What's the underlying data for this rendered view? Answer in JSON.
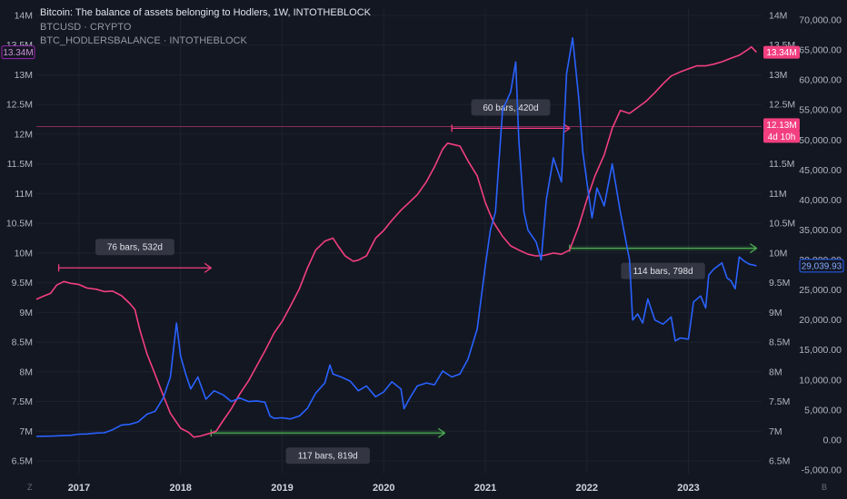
{
  "legend": {
    "title": "Bitcoin: The balance of assets belonging to Hodlers, 1W, INTOTHEBLOCK",
    "series1": "BTCUSD · CRYPTO",
    "series2": "BTC_HODLERSBALANCE · INTOTHEBLOCK"
  },
  "colors": {
    "background": "#131722",
    "price": "#2962ff",
    "hodlers": "#f23f7f",
    "green_marker": "#4caf50",
    "grid": "#1e222d"
  },
  "badges": {
    "hodlers_left": "13.34M",
    "hodlers_right": "13.34M",
    "crosshair_value": "12.13M",
    "crosshair_time": "4d 10h",
    "price_last": "29,039.93"
  },
  "corner_left": "Z",
  "corner_right": "B",
  "chart_data": {
    "type": "line",
    "x_range": [
      2016.58,
      2023.72
    ],
    "x_ticks": [
      {
        "x": 2017,
        "label": "2017"
      },
      {
        "x": 2018,
        "label": "2018"
      },
      {
        "x": 2019,
        "label": "2019"
      },
      {
        "x": 2020,
        "label": "2020"
      },
      {
        "x": 2021,
        "label": "2021"
      },
      {
        "x": 2022,
        "label": "2022"
      },
      {
        "x": 2023,
        "label": "2023"
      }
    ],
    "hodlers_axis": {
      "range": [
        6.5,
        14
      ],
      "ticks": [
        "6.5M",
        "7M",
        "7.5M",
        "8M",
        "8.5M",
        "9M",
        "9.5M",
        "10M",
        "10.5M",
        "11M",
        "11.5M",
        "12M",
        "12.5M",
        "13M",
        "13.5M",
        "14M"
      ],
      "tick_values": [
        6.5,
        7,
        7.5,
        8,
        8.5,
        9,
        9.5,
        10,
        10.5,
        11,
        11.5,
        12,
        12.5,
        13,
        13.5,
        14
      ]
    },
    "price_axis": {
      "range": [
        -5000,
        70000
      ],
      "ticks": [
        "-5,000.00",
        "0.00",
        "5,000.00",
        "10,000.00",
        "15,000.00",
        "20,000.00",
        "25,000.00",
        "30,000.00",
        "35,000.00",
        "40,000.00",
        "45,000.00",
        "50,000.00",
        "55,000.00",
        "60,000.00",
        "65,000.00",
        "70,000.00"
      ],
      "tick_values": [
        -5000,
        0,
        5000,
        10000,
        15000,
        20000,
        25000,
        30000,
        35000,
        40000,
        45000,
        50000,
        55000,
        60000,
        65000,
        70000
      ]
    },
    "series": [
      {
        "name": "BTC_HODLERSBALANCE",
        "axis": "hodlers",
        "points": [
          [
            2016.58,
            9.22
          ],
          [
            2016.66,
            9.28
          ],
          [
            2016.72,
            9.32
          ],
          [
            2016.78,
            9.46
          ],
          [
            2016.85,
            9.52
          ],
          [
            2016.92,
            9.49
          ],
          [
            2017.0,
            9.47
          ],
          [
            2017.08,
            9.41
          ],
          [
            2017.17,
            9.39
          ],
          [
            2017.25,
            9.35
          ],
          [
            2017.33,
            9.36
          ],
          [
            2017.42,
            9.28
          ],
          [
            2017.5,
            9.15
          ],
          [
            2017.55,
            9.05
          ],
          [
            2017.6,
            8.7
          ],
          [
            2017.67,
            8.3
          ],
          [
            2017.75,
            7.95
          ],
          [
            2017.83,
            7.6
          ],
          [
            2017.9,
            7.3
          ],
          [
            2018.0,
            7.05
          ],
          [
            2018.08,
            6.98
          ],
          [
            2018.13,
            6.9
          ],
          [
            2018.2,
            6.92
          ],
          [
            2018.3,
            6.97
          ],
          [
            2018.35,
            7.0
          ],
          [
            2018.42,
            7.18
          ],
          [
            2018.5,
            7.38
          ],
          [
            2018.58,
            7.62
          ],
          [
            2018.67,
            7.85
          ],
          [
            2018.75,
            8.1
          ],
          [
            2018.83,
            8.35
          ],
          [
            2018.92,
            8.65
          ],
          [
            2019.0,
            8.85
          ],
          [
            2019.08,
            9.1
          ],
          [
            2019.17,
            9.4
          ],
          [
            2019.25,
            9.75
          ],
          [
            2019.33,
            10.05
          ],
          [
            2019.42,
            10.2
          ],
          [
            2019.5,
            10.25
          ],
          [
            2019.55,
            10.12
          ],
          [
            2019.62,
            9.95
          ],
          [
            2019.7,
            9.86
          ],
          [
            2019.75,
            9.88
          ],
          [
            2019.83,
            9.95
          ],
          [
            2019.92,
            10.25
          ],
          [
            2020.0,
            10.38
          ],
          [
            2020.08,
            10.55
          ],
          [
            2020.17,
            10.72
          ],
          [
            2020.25,
            10.85
          ],
          [
            2020.33,
            10.98
          ],
          [
            2020.42,
            11.2
          ],
          [
            2020.5,
            11.45
          ],
          [
            2020.58,
            11.75
          ],
          [
            2020.63,
            11.85
          ],
          [
            2020.7,
            11.82
          ],
          [
            2020.75,
            11.8
          ],
          [
            2020.83,
            11.55
          ],
          [
            2020.92,
            11.3
          ],
          [
            2021.0,
            10.85
          ],
          [
            2021.08,
            10.52
          ],
          [
            2021.17,
            10.28
          ],
          [
            2021.25,
            10.12
          ],
          [
            2021.33,
            10.05
          ],
          [
            2021.42,
            9.98
          ],
          [
            2021.5,
            9.95
          ],
          [
            2021.58,
            9.96
          ],
          [
            2021.67,
            10.0
          ],
          [
            2021.75,
            9.98
          ],
          [
            2021.83,
            10.05
          ],
          [
            2021.92,
            10.45
          ],
          [
            2022.0,
            10.9
          ],
          [
            2022.08,
            11.3
          ],
          [
            2022.17,
            11.65
          ],
          [
            2022.25,
            12.1
          ],
          [
            2022.33,
            12.4
          ],
          [
            2022.42,
            12.35
          ],
          [
            2022.5,
            12.45
          ],
          [
            2022.58,
            12.55
          ],
          [
            2022.67,
            12.7
          ],
          [
            2022.75,
            12.85
          ],
          [
            2022.83,
            12.98
          ],
          [
            2022.92,
            13.05
          ],
          [
            2023.0,
            13.1
          ],
          [
            2023.08,
            13.15
          ],
          [
            2023.17,
            13.15
          ],
          [
            2023.25,
            13.18
          ],
          [
            2023.33,
            13.22
          ],
          [
            2023.42,
            13.28
          ],
          [
            2023.5,
            13.33
          ],
          [
            2023.58,
            13.42
          ],
          [
            2023.62,
            13.47
          ],
          [
            2023.67,
            13.38
          ]
        ]
      },
      {
        "name": "BTCUSD",
        "axis": "price",
        "points": [
          [
            2016.58,
            600
          ],
          [
            2016.66,
            620
          ],
          [
            2016.75,
            650
          ],
          [
            2016.83,
            720
          ],
          [
            2016.92,
            780
          ],
          [
            2017.0,
            980
          ],
          [
            2017.08,
            1000
          ],
          [
            2017.17,
            1150
          ],
          [
            2017.25,
            1200
          ],
          [
            2017.33,
            1700
          ],
          [
            2017.42,
            2500
          ],
          [
            2017.5,
            2600
          ],
          [
            2017.58,
            3000
          ],
          [
            2017.67,
            4300
          ],
          [
            2017.75,
            4800
          ],
          [
            2017.83,
            7000
          ],
          [
            2017.9,
            10500
          ],
          [
            2017.96,
            19500
          ],
          [
            2018.0,
            14000
          ],
          [
            2018.05,
            11000
          ],
          [
            2018.1,
            8500
          ],
          [
            2018.17,
            10500
          ],
          [
            2018.25,
            6800
          ],
          [
            2018.33,
            8200
          ],
          [
            2018.42,
            7500
          ],
          [
            2018.5,
            6400
          ],
          [
            2018.58,
            7000
          ],
          [
            2018.67,
            6400
          ],
          [
            2018.75,
            6500
          ],
          [
            2018.83,
            6300
          ],
          [
            2018.88,
            4000
          ],
          [
            2018.92,
            3600
          ],
          [
            2019.0,
            3700
          ],
          [
            2019.08,
            3500
          ],
          [
            2019.17,
            4000
          ],
          [
            2019.25,
            5300
          ],
          [
            2019.33,
            7800
          ],
          [
            2019.42,
            9500
          ],
          [
            2019.47,
            12500
          ],
          [
            2019.5,
            11000
          ],
          [
            2019.58,
            10500
          ],
          [
            2019.67,
            9800
          ],
          [
            2019.75,
            8200
          ],
          [
            2019.83,
            9000
          ],
          [
            2019.92,
            7200
          ],
          [
            2020.0,
            8000
          ],
          [
            2020.08,
            9700
          ],
          [
            2020.17,
            8500
          ],
          [
            2020.2,
            5200
          ],
          [
            2020.25,
            6800
          ],
          [
            2020.33,
            9000
          ],
          [
            2020.42,
            9500
          ],
          [
            2020.5,
            9200
          ],
          [
            2020.58,
            11500
          ],
          [
            2020.67,
            10500
          ],
          [
            2020.75,
            11000
          ],
          [
            2020.83,
            13500
          ],
          [
            2020.92,
            18500
          ],
          [
            2021.0,
            29000
          ],
          [
            2021.05,
            35000
          ],
          [
            2021.1,
            38000
          ],
          [
            2021.17,
            55000
          ],
          [
            2021.25,
            58000
          ],
          [
            2021.3,
            63000
          ],
          [
            2021.33,
            50000
          ],
          [
            2021.38,
            38000
          ],
          [
            2021.42,
            35000
          ],
          [
            2021.5,
            33000
          ],
          [
            2021.55,
            30000
          ],
          [
            2021.6,
            40000
          ],
          [
            2021.67,
            47000
          ],
          [
            2021.75,
            43000
          ],
          [
            2021.8,
            61000
          ],
          [
            2021.86,
            67000
          ],
          [
            2021.92,
            57000
          ],
          [
            2021.96,
            48000
          ],
          [
            2022.0,
            43000
          ],
          [
            2022.05,
            37000
          ],
          [
            2022.1,
            42000
          ],
          [
            2022.17,
            39000
          ],
          [
            2022.25,
            46000
          ],
          [
            2022.33,
            38000
          ],
          [
            2022.42,
            30000
          ],
          [
            2022.45,
            20000
          ],
          [
            2022.5,
            21000
          ],
          [
            2022.55,
            19500
          ],
          [
            2022.6,
            23500
          ],
          [
            2022.67,
            20000
          ],
          [
            2022.75,
            19300
          ],
          [
            2022.83,
            20500
          ],
          [
            2022.87,
            16500
          ],
          [
            2022.92,
            17000
          ],
          [
            2023.0,
            16800
          ],
          [
            2023.05,
            23000
          ],
          [
            2023.12,
            24000
          ],
          [
            2023.17,
            22000
          ],
          [
            2023.2,
            27500
          ],
          [
            2023.25,
            28500
          ],
          [
            2023.33,
            29500
          ],
          [
            2023.38,
            27000
          ],
          [
            2023.42,
            26500
          ],
          [
            2023.46,
            25200
          ],
          [
            2023.5,
            30500
          ],
          [
            2023.55,
            29800
          ],
          [
            2023.6,
            29300
          ],
          [
            2023.67,
            29040
          ]
        ]
      }
    ],
    "annotations": [
      {
        "label": "76 bars, 532d",
        "color": "pink",
        "from": [
          2016.8,
          9.75
        ],
        "to": [
          2018.3,
          9.75
        ]
      },
      {
        "label": "117 bars, 819d",
        "color": "green",
        "from": [
          2018.3,
          6.97
        ],
        "to": [
          2020.6,
          6.97
        ]
      },
      {
        "label": "60 bars, 420d",
        "color": "pink",
        "from": [
          2020.67,
          12.1
        ],
        "to": [
          2021.83,
          12.1
        ]
      },
      {
        "label": "114 bars, 798d",
        "color": "green",
        "from": [
          2021.83,
          10.08
        ],
        "to": [
          2023.67,
          10.08
        ]
      }
    ],
    "crosshair_level": 12.13
  }
}
